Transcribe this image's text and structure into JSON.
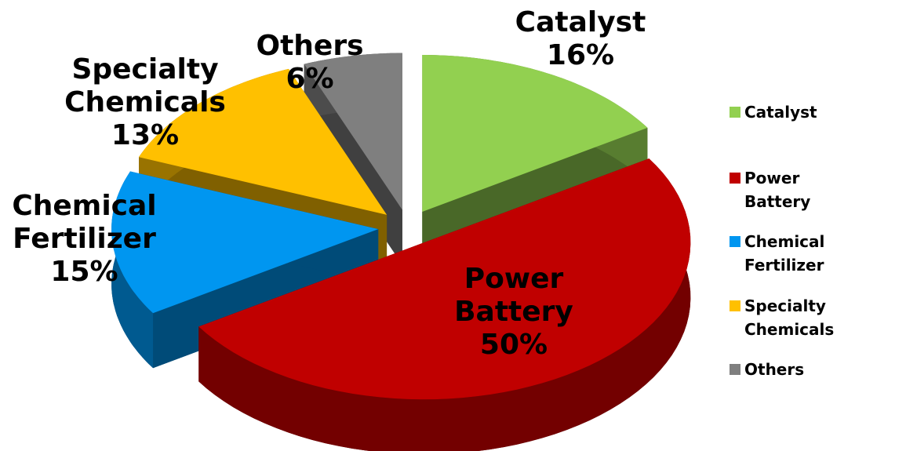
{
  "chart_data": {
    "type": "pie3d",
    "categories": [
      "Catalyst",
      "Power Battery",
      "Chemical Fertilizer",
      "Specialty Chemicals",
      "Others"
    ],
    "values": [
      16,
      50,
      15,
      13,
      6
    ],
    "value_labels": [
      "16%",
      "50%",
      "15%",
      "13%",
      "6%"
    ],
    "colors": [
      "#92d050",
      "#c00000",
      "#0096f0",
      "#ffc000",
      "#7f7f7f"
    ],
    "legend": "right"
  }
}
